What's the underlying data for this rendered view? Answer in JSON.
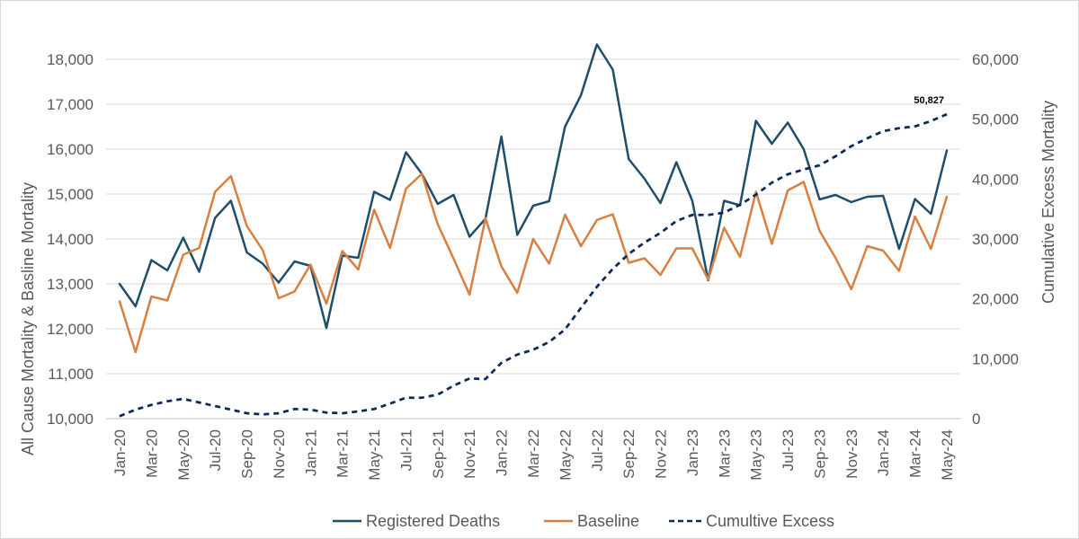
{
  "chart_data": {
    "type": "line",
    "title": "",
    "ylabel_left": "All Cause Mortality & Basline Mortality",
    "ylabel_right": "Cumulative Excess Mortality",
    "ylim_left": [
      10000,
      18500
    ],
    "yticks_left": [
      10000,
      11000,
      12000,
      13000,
      14000,
      15000,
      16000,
      17000,
      18000
    ],
    "ylim_right": [
      0,
      63750
    ],
    "yticks_right": [
      0,
      10000,
      20000,
      30000,
      40000,
      50000,
      60000
    ],
    "grid": true,
    "legend_position": "bottom",
    "x": [
      "Jan-20",
      "Feb-20",
      "Mar-20",
      "Apr-20",
      "May-20",
      "Jun-20",
      "Jul-20",
      "Aug-20",
      "Sep-20",
      "Oct-20",
      "Nov-20",
      "Dec-20",
      "Jan-21",
      "Feb-21",
      "Mar-21",
      "Apr-21",
      "May-21",
      "Jun-21",
      "Jul-21",
      "Aug-21",
      "Sep-21",
      "Oct-21",
      "Nov-21",
      "Dec-21",
      "Jan-22",
      "Feb-22",
      "Mar-22",
      "Apr-22",
      "May-22",
      "Jun-22",
      "Jul-22",
      "Aug-22",
      "Sep-22",
      "Oct-22",
      "Nov-22",
      "Dec-22",
      "Jan-23",
      "Feb-23",
      "Mar-23",
      "Apr-23",
      "May-23",
      "Jun-23",
      "Jul-23",
      "Aug-23",
      "Sep-23",
      "Oct-23",
      "Nov-23",
      "Dec-23",
      "Jan-24",
      "Feb-24",
      "Mar-24",
      "Apr-24",
      "May-24"
    ],
    "xtick_labels": [
      "Jan-20",
      "Mar-20",
      "May-20",
      "Jul-20",
      "Sep-20",
      "Nov-20",
      "Jan-21",
      "Mar-21",
      "May-21",
      "Jul-21",
      "Sep-21",
      "Nov-21",
      "Jan-22",
      "Mar-22",
      "May-22",
      "Jul-22",
      "Sep-22",
      "Nov-22",
      "Jan-23",
      "Mar-23",
      "May-23",
      "Jul-23",
      "Sep-23",
      "Nov-23",
      "Jan-24",
      "Mar-24",
      "May-24"
    ],
    "series": [
      {
        "name": "Registered Deaths",
        "axis": "left",
        "color": "#1f4e6b",
        "dash": "solid",
        "values": [
          13000,
          12500,
          13530,
          13300,
          14030,
          13270,
          14470,
          14850,
          13700,
          13450,
          13030,
          13500,
          13400,
          12020,
          13630,
          13580,
          15050,
          14870,
          15930,
          15450,
          14780,
          14980,
          14050,
          14450,
          16280,
          14090,
          14740,
          14840,
          16500,
          17200,
          18330,
          17770,
          15780,
          15340,
          14800,
          15710,
          14850,
          13080,
          14850,
          14750,
          16630,
          16120,
          16590,
          16000,
          14880,
          14980,
          14820,
          14940,
          14960,
          13780,
          14890,
          14560,
          15970
        ]
      },
      {
        "name": "Baseline",
        "axis": "left",
        "color": "#d97f3f",
        "dash": "solid",
        "values": [
          12610,
          11480,
          12720,
          12630,
          13650,
          13800,
          15050,
          15400,
          14290,
          13750,
          12680,
          12830,
          13430,
          12560,
          13730,
          13320,
          14650,
          13800,
          15120,
          15450,
          14330,
          13560,
          12760,
          14460,
          13390,
          12800,
          14000,
          13450,
          14540,
          13840,
          14420,
          14550,
          13470,
          13570,
          13200,
          13790,
          13790,
          13100,
          14250,
          13600,
          15050,
          13890,
          15080,
          15270,
          14180,
          13580,
          12880,
          13840,
          13740,
          13290,
          14500,
          13780,
          14940
        ]
      },
      {
        "name": "Cumultive Excess",
        "axis": "right",
        "color": "#0d2a57",
        "dash": "dashed",
        "values": [
          400,
          1500,
          2300,
          2900,
          3300,
          2700,
          2100,
          1500,
          900,
          700,
          900,
          1600,
          1500,
          1000,
          900,
          1200,
          1600,
          2500,
          3500,
          3500,
          4000,
          5500,
          6700,
          6600,
          9300,
          10700,
          11500,
          12800,
          14900,
          18500,
          22000,
          25000,
          27500,
          29400,
          31000,
          33000,
          34000,
          34000,
          34400,
          35700,
          37400,
          39400,
          40800,
          41600,
          42300,
          43800,
          45500,
          46800,
          48000,
          48500,
          48800,
          49700,
          50827
        ]
      }
    ],
    "annotations": [
      {
        "series": "Cumultive Excess",
        "x": "May-24",
        "value": 50827,
        "text": "50,827"
      }
    ]
  }
}
